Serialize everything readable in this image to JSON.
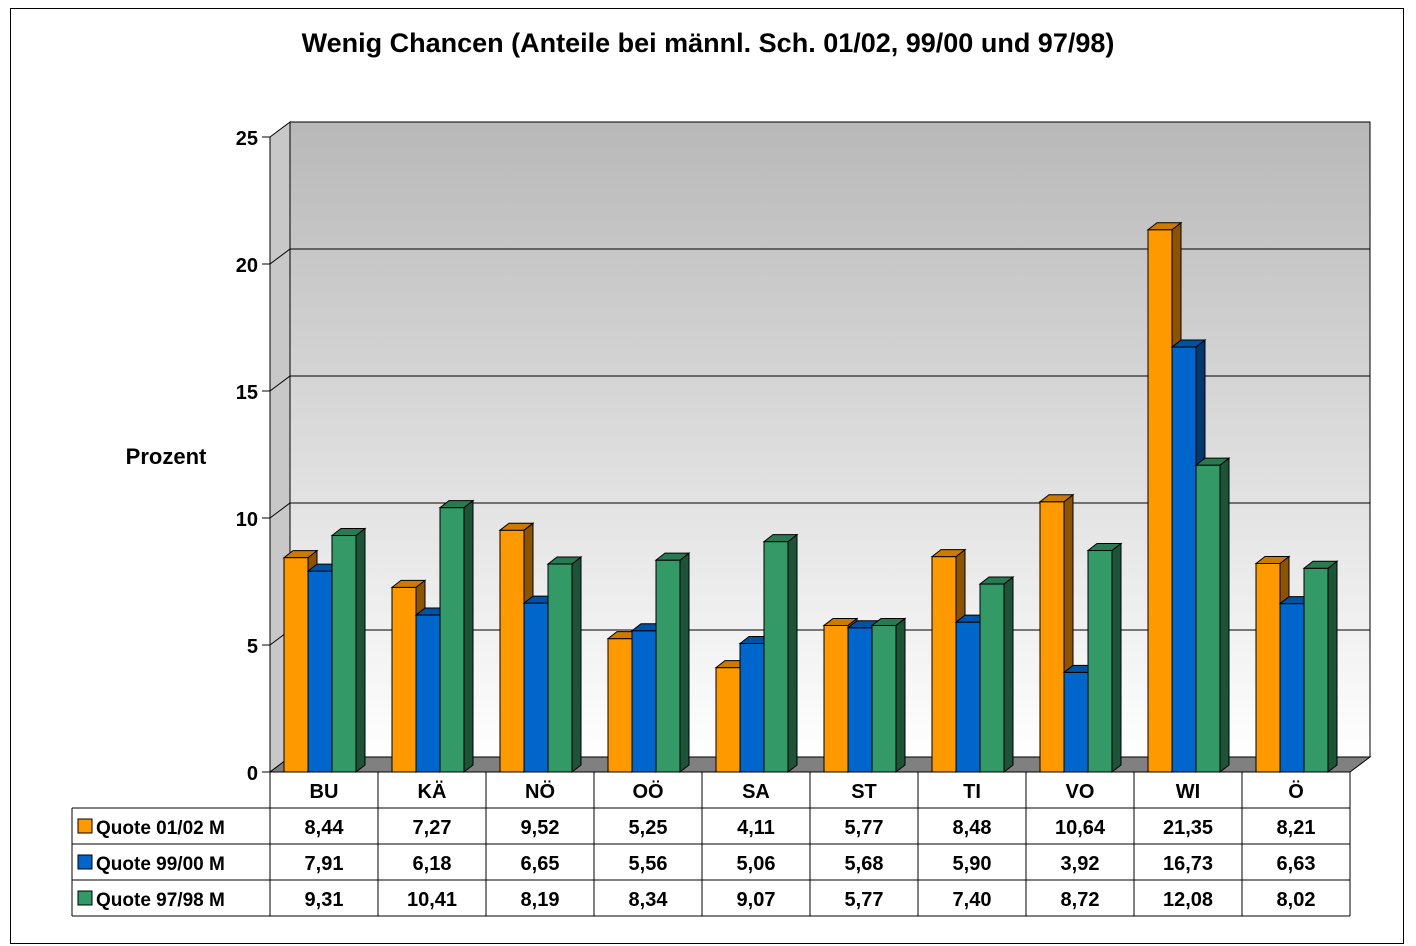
{
  "chart_data": {
    "type": "bar",
    "title": "Wenig Chancen (Anteile bei männl. Sch. 01/02, 99/00 und 97/98)",
    "xlabel": "",
    "ylabel": "Prozent",
    "ylim": [
      0,
      25
    ],
    "yticks": [
      "0",
      "5",
      "10",
      "15",
      "20",
      "25"
    ],
    "grid": true,
    "legend": "data-table-left",
    "categories": [
      "BU",
      "KÄ",
      "NÖ",
      "OÖ",
      "SA",
      "ST",
      "TI",
      "VO",
      "WI",
      "Ö"
    ],
    "series": [
      {
        "name": "Quote 01/02 M",
        "color": "#ff9900",
        "values": [
          8.44,
          7.27,
          9.52,
          5.25,
          4.11,
          5.77,
          8.48,
          10.64,
          21.35,
          8.21
        ],
        "labels": [
          "8,44",
          "7,27",
          "9,52",
          "5,25",
          "4,11",
          "5,77",
          "8,48",
          "10,64",
          "21,35",
          "8,21"
        ]
      },
      {
        "name": "Quote 99/00 M",
        "color": "#0066cc",
        "values": [
          7.91,
          6.18,
          6.65,
          5.56,
          5.06,
          5.68,
          5.9,
          3.92,
          16.73,
          6.63
        ],
        "labels": [
          "7,91",
          "6,18",
          "6,65",
          "5,56",
          "5,06",
          "5,68",
          "5,90",
          "3,92",
          "16,73",
          "6,63"
        ]
      },
      {
        "name": "Quote 97/98 M",
        "color": "#339966",
        "values": [
          9.31,
          10.41,
          8.19,
          8.34,
          9.07,
          5.77,
          7.4,
          8.72,
          12.08,
          8.02
        ],
        "labels": [
          "9,31",
          "10,41",
          "8,19",
          "8,34",
          "9,07",
          "5,77",
          "7,40",
          "8,72",
          "12,08",
          "8,02"
        ]
      }
    ]
  }
}
